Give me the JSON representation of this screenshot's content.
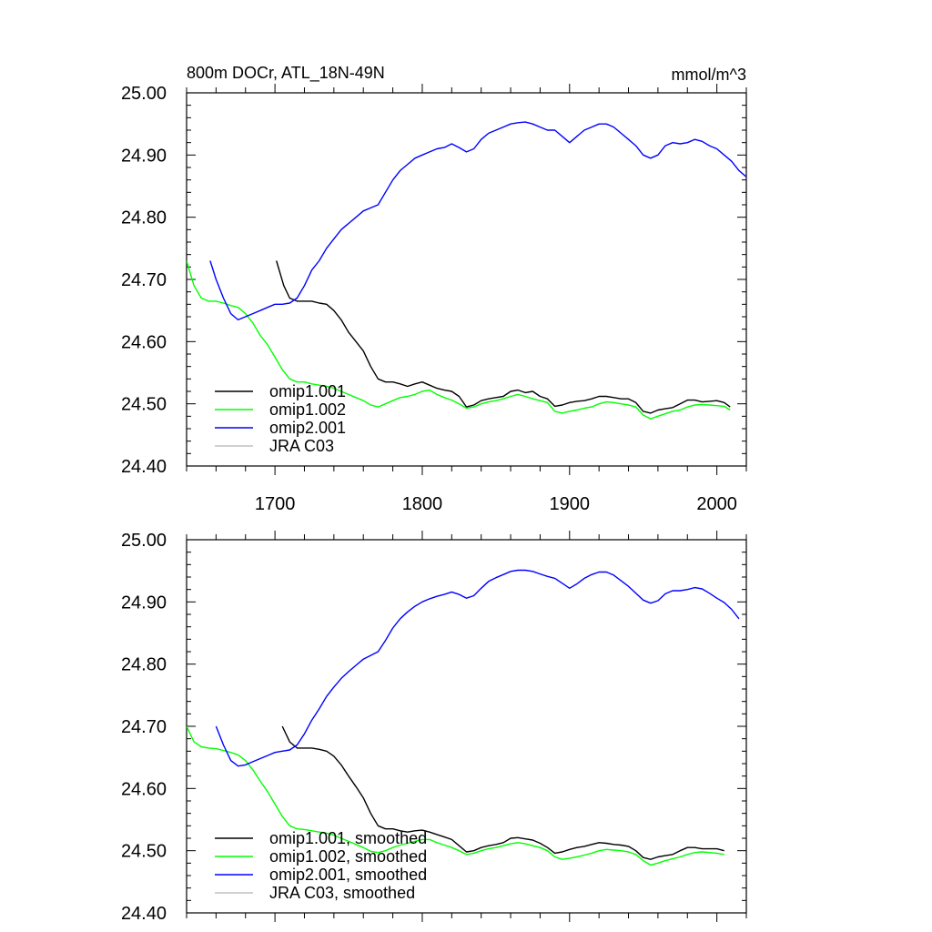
{
  "chart_data": [
    {
      "type": "line",
      "title": "800m DOCr, ATL_18N-49N",
      "units": "mmol/m^3",
      "xlim": [
        1640,
        2020
      ],
      "ylim": [
        24.4,
        25.0
      ],
      "xticks": [
        "1700",
        "1800",
        "1900",
        "2000"
      ],
      "yticks": [
        "24.40",
        "24.50",
        "24.60",
        "24.70",
        "24.80",
        "24.90",
        "25.00"
      ],
      "legend_position": "bottom-left",
      "series": [
        {
          "name": "omip1.001",
          "color": "#000000",
          "x": [
            1701,
            1706,
            1710,
            1715,
            1720,
            1725,
            1730,
            1735,
            1740,
            1745,
            1750,
            1755,
            1760,
            1765,
            1770,
            1775,
            1780,
            1785,
            1790,
            1795,
            1800,
            1805,
            1810,
            1815,
            1820,
            1825,
            1830,
            1835,
            1840,
            1845,
            1850,
            1855,
            1860,
            1865,
            1870,
            1875,
            1880,
            1885,
            1890,
            1895,
            1900,
            1905,
            1910,
            1915,
            1920,
            1925,
            1930,
            1935,
            1940,
            1945,
            1950,
            1955,
            1960,
            1965,
            1970,
            1975,
            1980,
            1985,
            1990,
            1995,
            2000,
            2005,
            2009
          ],
          "y": [
            24.73,
            24.69,
            24.67,
            24.665,
            24.665,
            24.665,
            24.662,
            24.66,
            24.65,
            24.635,
            24.615,
            24.6,
            24.585,
            24.56,
            24.54,
            24.535,
            24.535,
            24.532,
            24.528,
            24.532,
            24.535,
            24.53,
            24.525,
            24.522,
            24.52,
            24.512,
            24.495,
            24.498,
            24.505,
            24.508,
            24.51,
            24.512,
            24.52,
            24.522,
            24.518,
            24.52,
            24.512,
            24.508,
            24.496,
            24.498,
            24.502,
            24.504,
            24.505,
            24.508,
            24.512,
            24.512,
            24.51,
            24.508,
            24.508,
            24.502,
            24.488,
            24.485,
            24.49,
            24.492,
            24.494,
            24.5,
            24.506,
            24.506,
            24.503,
            24.504,
            24.505,
            24.502,
            24.495
          ]
        },
        {
          "name": "omip1.002",
          "color": "#00ff00",
          "x": [
            1640,
            1645,
            1650,
            1655,
            1660,
            1665,
            1670,
            1675,
            1680,
            1685,
            1690,
            1695,
            1700,
            1705,
            1710,
            1715,
            1720,
            1725,
            1730,
            1735,
            1740,
            1745,
            1750,
            1755,
            1760,
            1765,
            1770,
            1775,
            1780,
            1785,
            1790,
            1795,
            1800,
            1805,
            1810,
            1815,
            1820,
            1825,
            1830,
            1835,
            1840,
            1845,
            1850,
            1855,
            1860,
            1865,
            1870,
            1875,
            1880,
            1885,
            1890,
            1895,
            1900,
            1905,
            1910,
            1915,
            1920,
            1925,
            1930,
            1935,
            1940,
            1945,
            1950,
            1955,
            1960,
            1965,
            1970,
            1975,
            1980,
            1985,
            1990,
            1995,
            2000,
            2005,
            2009
          ],
          "y": [
            24.73,
            24.69,
            24.67,
            24.665,
            24.665,
            24.662,
            24.658,
            24.655,
            24.645,
            24.63,
            24.61,
            24.595,
            24.575,
            24.555,
            24.54,
            24.535,
            24.535,
            24.532,
            24.53,
            24.528,
            24.525,
            24.52,
            24.515,
            24.51,
            24.505,
            24.498,
            24.495,
            24.5,
            24.505,
            24.51,
            24.512,
            24.515,
            24.52,
            24.522,
            24.515,
            24.51,
            24.506,
            24.5,
            24.493,
            24.495,
            24.5,
            24.503,
            24.505,
            24.508,
            24.512,
            24.515,
            24.512,
            24.508,
            24.505,
            24.502,
            24.488,
            24.485,
            24.488,
            24.49,
            24.493,
            24.495,
            24.5,
            24.503,
            24.502,
            24.5,
            24.498,
            24.495,
            24.482,
            24.476,
            24.48,
            24.484,
            24.488,
            24.49,
            24.495,
            24.498,
            24.499,
            24.498,
            24.497,
            24.496,
            24.49
          ]
        },
        {
          "name": "omip2.001",
          "color": "#0000ff",
          "x": [
            1656,
            1660,
            1665,
            1670,
            1675,
            1680,
            1685,
            1690,
            1695,
            1700,
            1705,
            1710,
            1715,
            1720,
            1725,
            1730,
            1735,
            1740,
            1745,
            1750,
            1755,
            1760,
            1765,
            1770,
            1775,
            1780,
            1785,
            1790,
            1795,
            1800,
            1805,
            1810,
            1815,
            1820,
            1825,
            1830,
            1835,
            1840,
            1845,
            1850,
            1855,
            1860,
            1865,
            1870,
            1875,
            1880,
            1885,
            1890,
            1895,
            1900,
            1905,
            1910,
            1915,
            1920,
            1925,
            1930,
            1935,
            1940,
            1945,
            1950,
            1955,
            1960,
            1965,
            1970,
            1975,
            1980,
            1985,
            1990,
            1995,
            2000,
            2005,
            2010,
            2015,
            2020
          ],
          "y": [
            24.73,
            24.7,
            24.67,
            24.645,
            24.635,
            24.64,
            24.645,
            24.65,
            24.655,
            24.66,
            24.66,
            24.662,
            24.67,
            24.69,
            24.715,
            24.73,
            24.75,
            24.765,
            24.78,
            24.79,
            24.8,
            24.81,
            24.815,
            24.82,
            24.84,
            24.86,
            24.875,
            24.885,
            24.895,
            24.9,
            24.905,
            24.91,
            24.912,
            24.918,
            24.912,
            24.905,
            24.91,
            24.925,
            24.935,
            24.94,
            24.945,
            24.95,
            24.952,
            24.953,
            24.95,
            24.945,
            24.94,
            24.94,
            24.93,
            24.92,
            24.93,
            24.94,
            24.945,
            24.95,
            24.95,
            24.945,
            24.935,
            24.925,
            24.915,
            24.9,
            24.895,
            24.9,
            24.915,
            24.92,
            24.918,
            24.92,
            24.925,
            24.922,
            24.915,
            24.91,
            24.9,
            24.89,
            24.875,
            24.865
          ]
        },
        {
          "name": "JRA C03",
          "color": "#c0c0c0",
          "x": [],
          "y": []
        }
      ]
    },
    {
      "type": "line",
      "xlim": [
        1640,
        2020
      ],
      "ylim": [
        24.4,
        25.0
      ],
      "yticks": [
        "24.40",
        "24.50",
        "24.60",
        "24.70",
        "24.80",
        "24.90",
        "25.00"
      ],
      "legend_position": "bottom-left",
      "series": [
        {
          "name": "omip1.001, smoothed",
          "color": "#000000",
          "x": [
            1705,
            1710,
            1715,
            1720,
            1725,
            1730,
            1735,
            1740,
            1745,
            1750,
            1755,
            1760,
            1765,
            1770,
            1775,
            1780,
            1785,
            1790,
            1795,
            1800,
            1805,
            1810,
            1815,
            1820,
            1825,
            1830,
            1835,
            1840,
            1845,
            1850,
            1855,
            1860,
            1865,
            1870,
            1875,
            1880,
            1885,
            1890,
            1895,
            1900,
            1905,
            1910,
            1915,
            1920,
            1925,
            1930,
            1935,
            1940,
            1945,
            1950,
            1955,
            1960,
            1965,
            1970,
            1975,
            1980,
            1985,
            1990,
            1995,
            2000,
            2005
          ],
          "y": [
            24.7,
            24.675,
            24.665,
            24.665,
            24.665,
            24.663,
            24.66,
            24.652,
            24.638,
            24.62,
            24.603,
            24.585,
            24.56,
            24.54,
            24.535,
            24.535,
            24.532,
            24.53,
            24.532,
            24.533,
            24.53,
            24.526,
            24.522,
            24.518,
            24.508,
            24.498,
            24.5,
            24.505,
            24.508,
            24.51,
            24.513,
            24.52,
            24.521,
            24.519,
            24.517,
            24.512,
            24.505,
            24.496,
            24.498,
            24.502,
            24.505,
            24.507,
            24.51,
            24.513,
            24.512,
            24.51,
            24.509,
            24.507,
            24.5,
            24.489,
            24.486,
            24.49,
            24.492,
            24.494,
            24.5,
            24.505,
            24.505,
            24.503,
            24.503,
            24.503,
            24.5
          ]
        },
        {
          "name": "omip1.002, smoothed",
          "color": "#00ff00",
          "x": [
            1640,
            1645,
            1650,
            1655,
            1660,
            1665,
            1670,
            1675,
            1680,
            1685,
            1690,
            1695,
            1700,
            1705,
            1710,
            1715,
            1720,
            1725,
            1730,
            1735,
            1740,
            1745,
            1750,
            1755,
            1760,
            1765,
            1770,
            1775,
            1780,
            1785,
            1790,
            1795,
            1800,
            1805,
            1810,
            1815,
            1820,
            1825,
            1830,
            1835,
            1840,
            1845,
            1850,
            1855,
            1860,
            1865,
            1870,
            1875,
            1880,
            1885,
            1890,
            1895,
            1900,
            1905,
            1910,
            1915,
            1920,
            1925,
            1930,
            1935,
            1940,
            1945,
            1950,
            1955,
            1960,
            1965,
            1970,
            1975,
            1980,
            1985,
            1990,
            1995,
            2000,
            2005
          ],
          "y": [
            24.7,
            24.675,
            24.667,
            24.665,
            24.664,
            24.661,
            24.658,
            24.654,
            24.645,
            24.63,
            24.612,
            24.595,
            24.575,
            24.555,
            24.54,
            24.535,
            24.534,
            24.532,
            24.53,
            24.528,
            24.525,
            24.52,
            24.515,
            24.51,
            24.505,
            24.499,
            24.497,
            24.5,
            24.505,
            24.509,
            24.512,
            24.515,
            24.518,
            24.518,
            24.513,
            24.509,
            24.505,
            24.5,
            24.494,
            24.496,
            24.5,
            24.503,
            24.505,
            24.508,
            24.511,
            24.513,
            24.511,
            24.508,
            24.505,
            24.5,
            24.49,
            24.486,
            24.488,
            24.49,
            24.493,
            24.496,
            24.5,
            24.502,
            24.501,
            24.5,
            24.498,
            24.494,
            24.484,
            24.477,
            24.48,
            24.484,
            24.487,
            24.49,
            24.494,
            24.497,
            24.498,
            24.497,
            24.496,
            24.494
          ]
        },
        {
          "name": "omip2.001, smoothed",
          "color": "#0000ff",
          "x": [
            1660,
            1665,
            1670,
            1675,
            1680,
            1685,
            1690,
            1695,
            1700,
            1705,
            1710,
            1715,
            1720,
            1725,
            1730,
            1735,
            1740,
            1745,
            1750,
            1755,
            1760,
            1765,
            1770,
            1775,
            1780,
            1785,
            1790,
            1795,
            1800,
            1805,
            1810,
            1815,
            1820,
            1825,
            1830,
            1835,
            1840,
            1845,
            1850,
            1855,
            1860,
            1865,
            1870,
            1875,
            1880,
            1885,
            1890,
            1895,
            1900,
            1905,
            1910,
            1915,
            1920,
            1925,
            1930,
            1935,
            1940,
            1945,
            1950,
            1955,
            1960,
            1965,
            1970,
            1975,
            1980,
            1985,
            1990,
            1995,
            2000,
            2005,
            2010,
            2015
          ],
          "y": [
            24.7,
            24.67,
            24.645,
            24.636,
            24.638,
            24.643,
            24.648,
            24.653,
            24.658,
            24.66,
            24.662,
            24.67,
            24.688,
            24.71,
            24.728,
            24.748,
            24.763,
            24.777,
            24.788,
            24.798,
            24.808,
            24.814,
            24.82,
            24.838,
            24.858,
            24.873,
            24.884,
            24.893,
            24.9,
            24.905,
            24.909,
            24.912,
            24.916,
            24.912,
            24.906,
            24.91,
            24.922,
            24.933,
            24.939,
            24.944,
            24.949,
            24.951,
            24.951,
            24.949,
            24.945,
            24.941,
            24.938,
            24.93,
            24.922,
            24.929,
            24.938,
            24.944,
            24.948,
            24.948,
            24.943,
            24.934,
            24.925,
            24.914,
            24.903,
            24.898,
            24.902,
            24.913,
            24.918,
            24.918,
            24.92,
            24.923,
            24.921,
            24.914,
            24.906,
            24.899,
            24.888,
            24.873
          ]
        },
        {
          "name": "JRA C03, smoothed",
          "color": "#c0c0c0",
          "x": [],
          "y": []
        }
      ]
    }
  ]
}
